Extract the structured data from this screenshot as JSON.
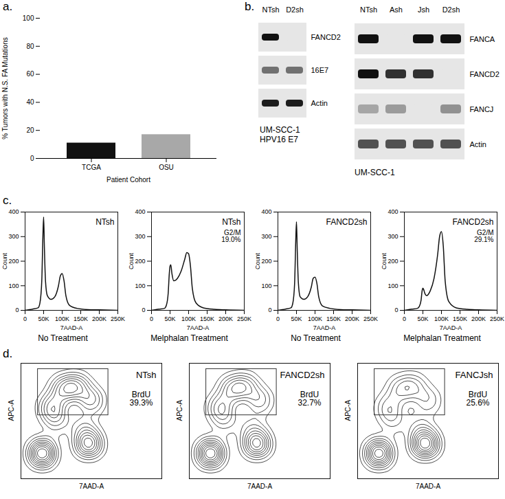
{
  "chart_data": [
    {
      "type": "bar",
      "panel": "a.",
      "categories": [
        "TCGA",
        "OSU"
      ],
      "values": [
        11,
        17
      ],
      "colors": [
        "#111111",
        "#a8a8a8"
      ],
      "x_label": "Patient Cohort",
      "y_label": "% Tumors with N.S. FA Mutations",
      "ylim": [
        0,
        100
      ],
      "yticks": [
        0,
        20,
        40,
        60,
        80,
        100
      ]
    },
    {
      "type": "blot",
      "panel": "b.",
      "lanes": [
        "NTsh",
        "D2sh"
      ],
      "rows": [
        "FANCD2",
        "16E7",
        "Actin"
      ],
      "bands": [
        [
          1,
          0
        ],
        [
          0.55,
          0.55
        ],
        [
          0.95,
          0.95
        ]
      ],
      "caption": "UM-SCC-1 HPV16 E7"
    },
    {
      "type": "blot",
      "lanes": [
        "NTsh",
        "Ash",
        "Jsh",
        "D2sh"
      ],
      "rows": [
        "FANCA",
        "FANCD2",
        "FANCJ",
        "Actin"
      ],
      "bands": [
        [
          1,
          0,
          1,
          1
        ],
        [
          1,
          0.85,
          0.85,
          0
        ],
        [
          0.3,
          0.35,
          0,
          0.4
        ],
        [
          0.7,
          0.7,
          0.7,
          0.7
        ]
      ],
      "caption": "UM-SCC-1"
    },
    {
      "type": "line",
      "panel": "c.",
      "title": "NTsh",
      "caption": "No Treatment",
      "x_label": "7AAD-A",
      "y_label": "Count",
      "x": [
        0,
        20000,
        35000,
        40000,
        45000,
        48000,
        50000,
        52000,
        55000,
        60000,
        70000,
        80000,
        90000,
        95000,
        100000,
        105000,
        110000,
        120000,
        140000,
        170000,
        200000,
        250000
      ],
      "values": [
        0,
        5,
        10,
        30,
        120,
        300,
        380,
        260,
        120,
        60,
        45,
        55,
        100,
        140,
        150,
        120,
        60,
        20,
        8,
        3,
        2,
        0
      ],
      "xlim": [
        0,
        250000
      ],
      "xticks": [
        0,
        {
          "value": 50000,
          "label": "50K"
        },
        {
          "value": 100000,
          "label": "100K"
        },
        {
          "value": 150000,
          "label": "150K"
        },
        {
          "value": 200000,
          "label": "200K"
        },
        {
          "value": 250000,
          "label": "250K"
        }
      ],
      "ylim": [
        0,
        400
      ],
      "yticks": [
        0,
        100,
        200,
        300,
        400
      ]
    },
    {
      "type": "line",
      "title": "NTsh",
      "annotation": "G2/M 19.0%",
      "caption": "Melphalan Treatment",
      "x_label": "7AAD-A",
      "y_label": "Count",
      "x": [
        0,
        20000,
        35000,
        40000,
        45000,
        48000,
        50000,
        52000,
        55000,
        60000,
        70000,
        80000,
        90000,
        95000,
        100000,
        105000,
        110000,
        120000,
        140000,
        170000,
        200000,
        250000
      ],
      "values": [
        0,
        5,
        8,
        20,
        70,
        150,
        180,
        185,
        150,
        120,
        130,
        160,
        210,
        235,
        230,
        180,
        90,
        30,
        10,
        4,
        2,
        0
      ],
      "xlim": [
        0,
        250000
      ],
      "xticks": [
        0,
        {
          "value": 50000,
          "label": "50K"
        },
        {
          "value": 100000,
          "label": "100K"
        },
        {
          "value": 150000,
          "label": "150K"
        },
        {
          "value": 200000,
          "label": "200K"
        },
        {
          "value": 250000,
          "label": "250K"
        }
      ],
      "ylim": [
        0,
        400
      ],
      "yticks": [
        0,
        100,
        200,
        300,
        400
      ]
    },
    {
      "type": "line",
      "title": "FANCD2sh",
      "caption": "No Treatment",
      "x_label": "7AAD-A",
      "y_label": "Count",
      "x": [
        0,
        20000,
        35000,
        40000,
        45000,
        48000,
        50000,
        52000,
        55000,
        60000,
        70000,
        80000,
        90000,
        95000,
        100000,
        105000,
        110000,
        120000,
        140000,
        170000,
        200000,
        250000
      ],
      "values": [
        0,
        5,
        10,
        28,
        110,
        280,
        360,
        250,
        115,
        55,
        45,
        55,
        95,
        130,
        135,
        110,
        55,
        18,
        8,
        3,
        2,
        0
      ],
      "xlim": [
        0,
        250000
      ],
      "xticks": [
        0,
        {
          "value": 50000,
          "label": "50K"
        },
        {
          "value": 100000,
          "label": "100K"
        },
        {
          "value": 150000,
          "label": "150K"
        },
        {
          "value": 200000,
          "label": "200K"
        },
        {
          "value": 250000,
          "label": "250K"
        }
      ],
      "ylim": [
        0,
        400
      ],
      "yticks": [
        0,
        100,
        200,
        300,
        400
      ]
    },
    {
      "type": "line",
      "title": "FANCD2sh",
      "annotation": "G2/M 29.1%",
      "caption": "Melphalan Treatment",
      "x_label": "7AAD-A",
      "y_label": "Count",
      "x": [
        0,
        20000,
        35000,
        40000,
        45000,
        48000,
        50000,
        52000,
        55000,
        60000,
        70000,
        80000,
        90000,
        95000,
        100000,
        105000,
        110000,
        120000,
        140000,
        170000,
        200000,
        250000
      ],
      "values": [
        0,
        5,
        8,
        15,
        40,
        80,
        90,
        85,
        70,
        60,
        80,
        130,
        230,
        300,
        320,
        260,
        120,
        35,
        10,
        4,
        2,
        0
      ],
      "xlim": [
        0,
        250000
      ],
      "xticks": [
        0,
        {
          "value": 50000,
          "label": "50K"
        },
        {
          "value": 100000,
          "label": "100K"
        },
        {
          "value": 150000,
          "label": "150K"
        },
        {
          "value": 200000,
          "label": "200K"
        },
        {
          "value": 250000,
          "label": "250K"
        }
      ],
      "ylim": [
        0,
        400
      ],
      "yticks": [
        0,
        100,
        200,
        300,
        400
      ]
    },
    {
      "type": "contour",
      "panel": "d.",
      "title": "NTsh",
      "annotation": "BrdU 39.3%",
      "x_label": "7AAD-A",
      "y_label": "APC-A",
      "xlim": [
        0,
        100
      ],
      "ylim": [
        0,
        100
      ],
      "tick_labels": false,
      "points": {
        "x": [
          15,
          48,
          22,
          30,
          40,
          50,
          25,
          45
        ],
        "y": [
          22,
          30,
          62,
          78,
          80,
          68,
          50,
          45
        ],
        "weight": [
          3,
          2.5,
          1.5,
          1.5,
          1.5,
          1.2,
          0.8,
          0.8
        ]
      },
      "gate": {
        "x1": 12,
        "x2": 62,
        "y1": 55,
        "y2": 95
      }
    },
    {
      "type": "contour",
      "title": "FANCD2sh",
      "annotation": "BrdU 32.7%",
      "x_label": "7AAD-A",
      "y_label": "APC-A",
      "xlim": [
        0,
        100
      ],
      "ylim": [
        0,
        100
      ],
      "tick_labels": false,
      "points": {
        "x": [
          15,
          48,
          22,
          30,
          40,
          50,
          25,
          45
        ],
        "y": [
          22,
          30,
          62,
          78,
          80,
          68,
          50,
          45
        ],
        "weight": [
          3,
          2.5,
          1.3,
          1.3,
          1.3,
          1,
          0.7,
          0.7
        ]
      },
      "gate": {
        "x1": 12,
        "x2": 62,
        "y1": 55,
        "y2": 95
      }
    },
    {
      "type": "contour",
      "title": "FANCJsh",
      "annotation": "BrdU 25.6%",
      "x_label": "7AAD-A",
      "y_label": "APC-A",
      "xlim": [
        0,
        100
      ],
      "ylim": [
        0,
        100
      ],
      "tick_labels": false,
      "points": {
        "x": [
          15,
          48,
          22,
          30,
          40,
          50,
          25,
          45
        ],
        "y": [
          22,
          30,
          62,
          78,
          80,
          68,
          50,
          45
        ],
        "weight": [
          3,
          3,
          1,
          1,
          1,
          0.8,
          0.6,
          0.7
        ]
      },
      "gate": {
        "x1": 12,
        "x2": 62,
        "y1": 55,
        "y2": 95
      }
    }
  ]
}
